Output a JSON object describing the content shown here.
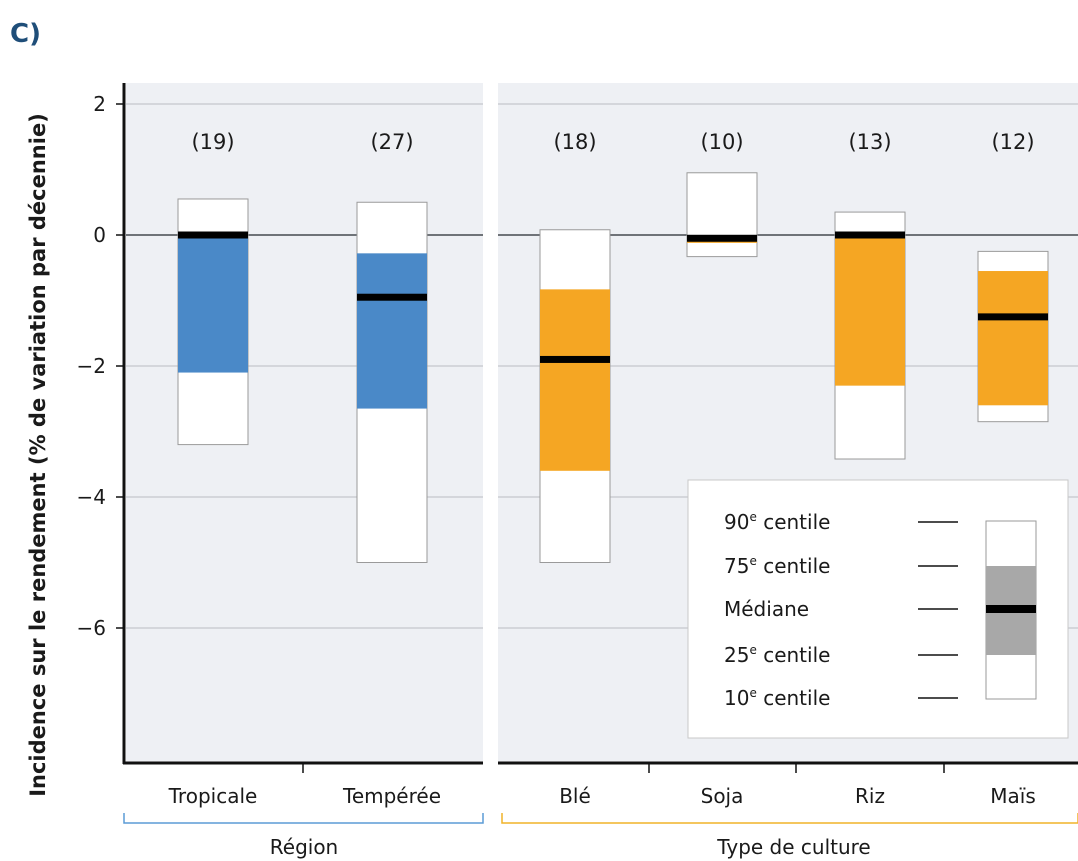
{
  "panel_label": "C)",
  "colors": {
    "region": "#4a89c8",
    "crop": "#f5a623",
    "legend_box": "#a8a8a8",
    "panel_bg": "#eef0f4",
    "median": "#000000",
    "region_bracket": "#5b9bd5",
    "crop_bracket": "#f0b429"
  },
  "legend": {
    "entries": [
      {
        "number": "90",
        "suffix": "e",
        "label": " centile"
      },
      {
        "number": "75",
        "suffix": "e",
        "label": " centile"
      },
      {
        "text": "Médiane"
      },
      {
        "number": "25",
        "suffix": "e",
        "label": " centile"
      },
      {
        "number": "10",
        "suffix": "e",
        "label": " centile"
      }
    ],
    "placement": "bottom-right"
  },
  "chart_data": {
    "type": "box",
    "ylabel": "Incidence sur le rendement (% de variation par décennie)",
    "ylim": [
      -8,
      2.4
    ],
    "yticks": [
      2,
      0,
      -2,
      -4,
      -6
    ],
    "ytick_labels": [
      "2",
      "0",
      "−2",
      "−4",
      "−6"
    ],
    "grid": true,
    "groups": [
      {
        "label": "Région",
        "color_key": "region",
        "categories": [
          {
            "name": "Tropicale",
            "count_label": "(19)",
            "p10": -3.2,
            "p25": -2.1,
            "median": 0.0,
            "p75": 0.0,
            "p90": 0.55
          },
          {
            "name": "Tempérée",
            "count_label": "(27)",
            "p10": -5.0,
            "p25": -2.65,
            "median": -0.95,
            "p75": -0.28,
            "p90": 0.5
          }
        ]
      },
      {
        "label": "Type de culture",
        "color_key": "crop",
        "categories": [
          {
            "name": "Blé",
            "count_label": "(18)",
            "p10": -5.0,
            "p25": -3.6,
            "median": -1.9,
            "p75": -0.83,
            "p90": 0.08
          },
          {
            "name": "Soja",
            "count_label": "(10)",
            "p10": -0.33,
            "p25": -0.12,
            "median": -0.05,
            "p75": 0.0,
            "p90": 0.95
          },
          {
            "name": "Riz",
            "count_label": "(13)",
            "p10": -3.42,
            "p25": -2.3,
            "median": 0.0,
            "p75": 0.0,
            "p90": 0.35
          },
          {
            "name": "Maïs",
            "count_label": "(12)",
            "p10": -2.85,
            "p25": -2.6,
            "median": -1.25,
            "p75": -0.55,
            "p90": -0.25
          }
        ]
      }
    ]
  }
}
